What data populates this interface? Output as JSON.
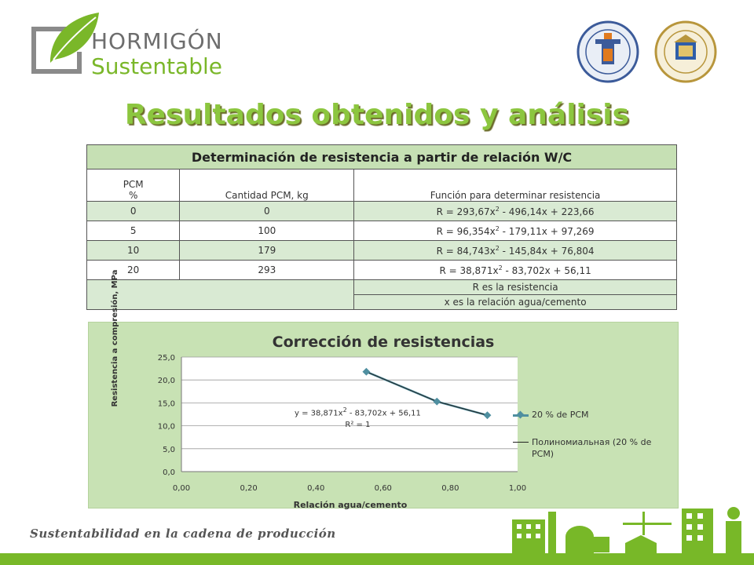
{
  "logo": {
    "brand_line1": "HORMIGÓN",
    "brand_line2": "Sustentable"
  },
  "seals": [
    "university-seal-left",
    "university-seal-right"
  ],
  "title": "Resultados obtenidos y análisis",
  "table": {
    "heading": "Determinación de resistencia a partir de relación W/C",
    "col1_header_line1": "PCM",
    "col1_header_line2": "%",
    "col2_header": "Cantidad PCM, kg",
    "col3_header": "Función para determinar resistencia",
    "rows": [
      {
        "pcm": "0",
        "qty": "0",
        "f_a": "R = 293,67x",
        "f_b": " - 496,14x + 223,66"
      },
      {
        "pcm": "5",
        "qty": "100",
        "f_a": "R = 96,354x",
        "f_b": " - 179,11x + 97,269"
      },
      {
        "pcm": "10",
        "qty": "179",
        "f_a": "R = 84,743x",
        "f_b": " - 145,84x + 76,804"
      },
      {
        "pcm": "20",
        "qty": "293",
        "f_a": "R = 38,871x",
        "f_b": " - 83,702x + 56,11"
      }
    ],
    "exponent": "2",
    "note1": "R es la resistencia",
    "note2": "x es la relación agua/cemento"
  },
  "chart_data": {
    "type": "scatter",
    "title": "Corrección de resistencias",
    "xlabel": "Relación agua/cemento",
    "ylabel": "Resistencia a compresión, MPa",
    "xlim": [
      0,
      1
    ],
    "ylim": [
      0,
      25
    ],
    "x_ticks": [
      "0,00",
      "0,20",
      "0,40",
      "0,60",
      "0,80",
      "1,00"
    ],
    "y_ticks": [
      "0,0",
      "5,0",
      "10,0",
      "15,0",
      "20,0",
      "25,0"
    ],
    "series": [
      {
        "name": "20 % de  PCM",
        "x": [
          0.55,
          0.76,
          0.91
        ],
        "y": [
          21.8,
          15.3,
          12.3
        ]
      }
    ],
    "trendline": {
      "name": "Полиномиальная (20 % de PCM)",
      "equation_a": "y = 38,871x",
      "equation_b": " - 83,702x + 56,11",
      "r2": "R² = 1"
    },
    "legend_position": "right",
    "grid": true,
    "colors": {
      "series": "#4f8fa0",
      "trend": "#222222"
    }
  },
  "footer": {
    "tagline": "Sustentabilidad en la cadena de producción"
  },
  "colors": {
    "accent_green": "#8cc63f",
    "bar_green": "#78b828",
    "table_green": "#c6e0b4"
  }
}
